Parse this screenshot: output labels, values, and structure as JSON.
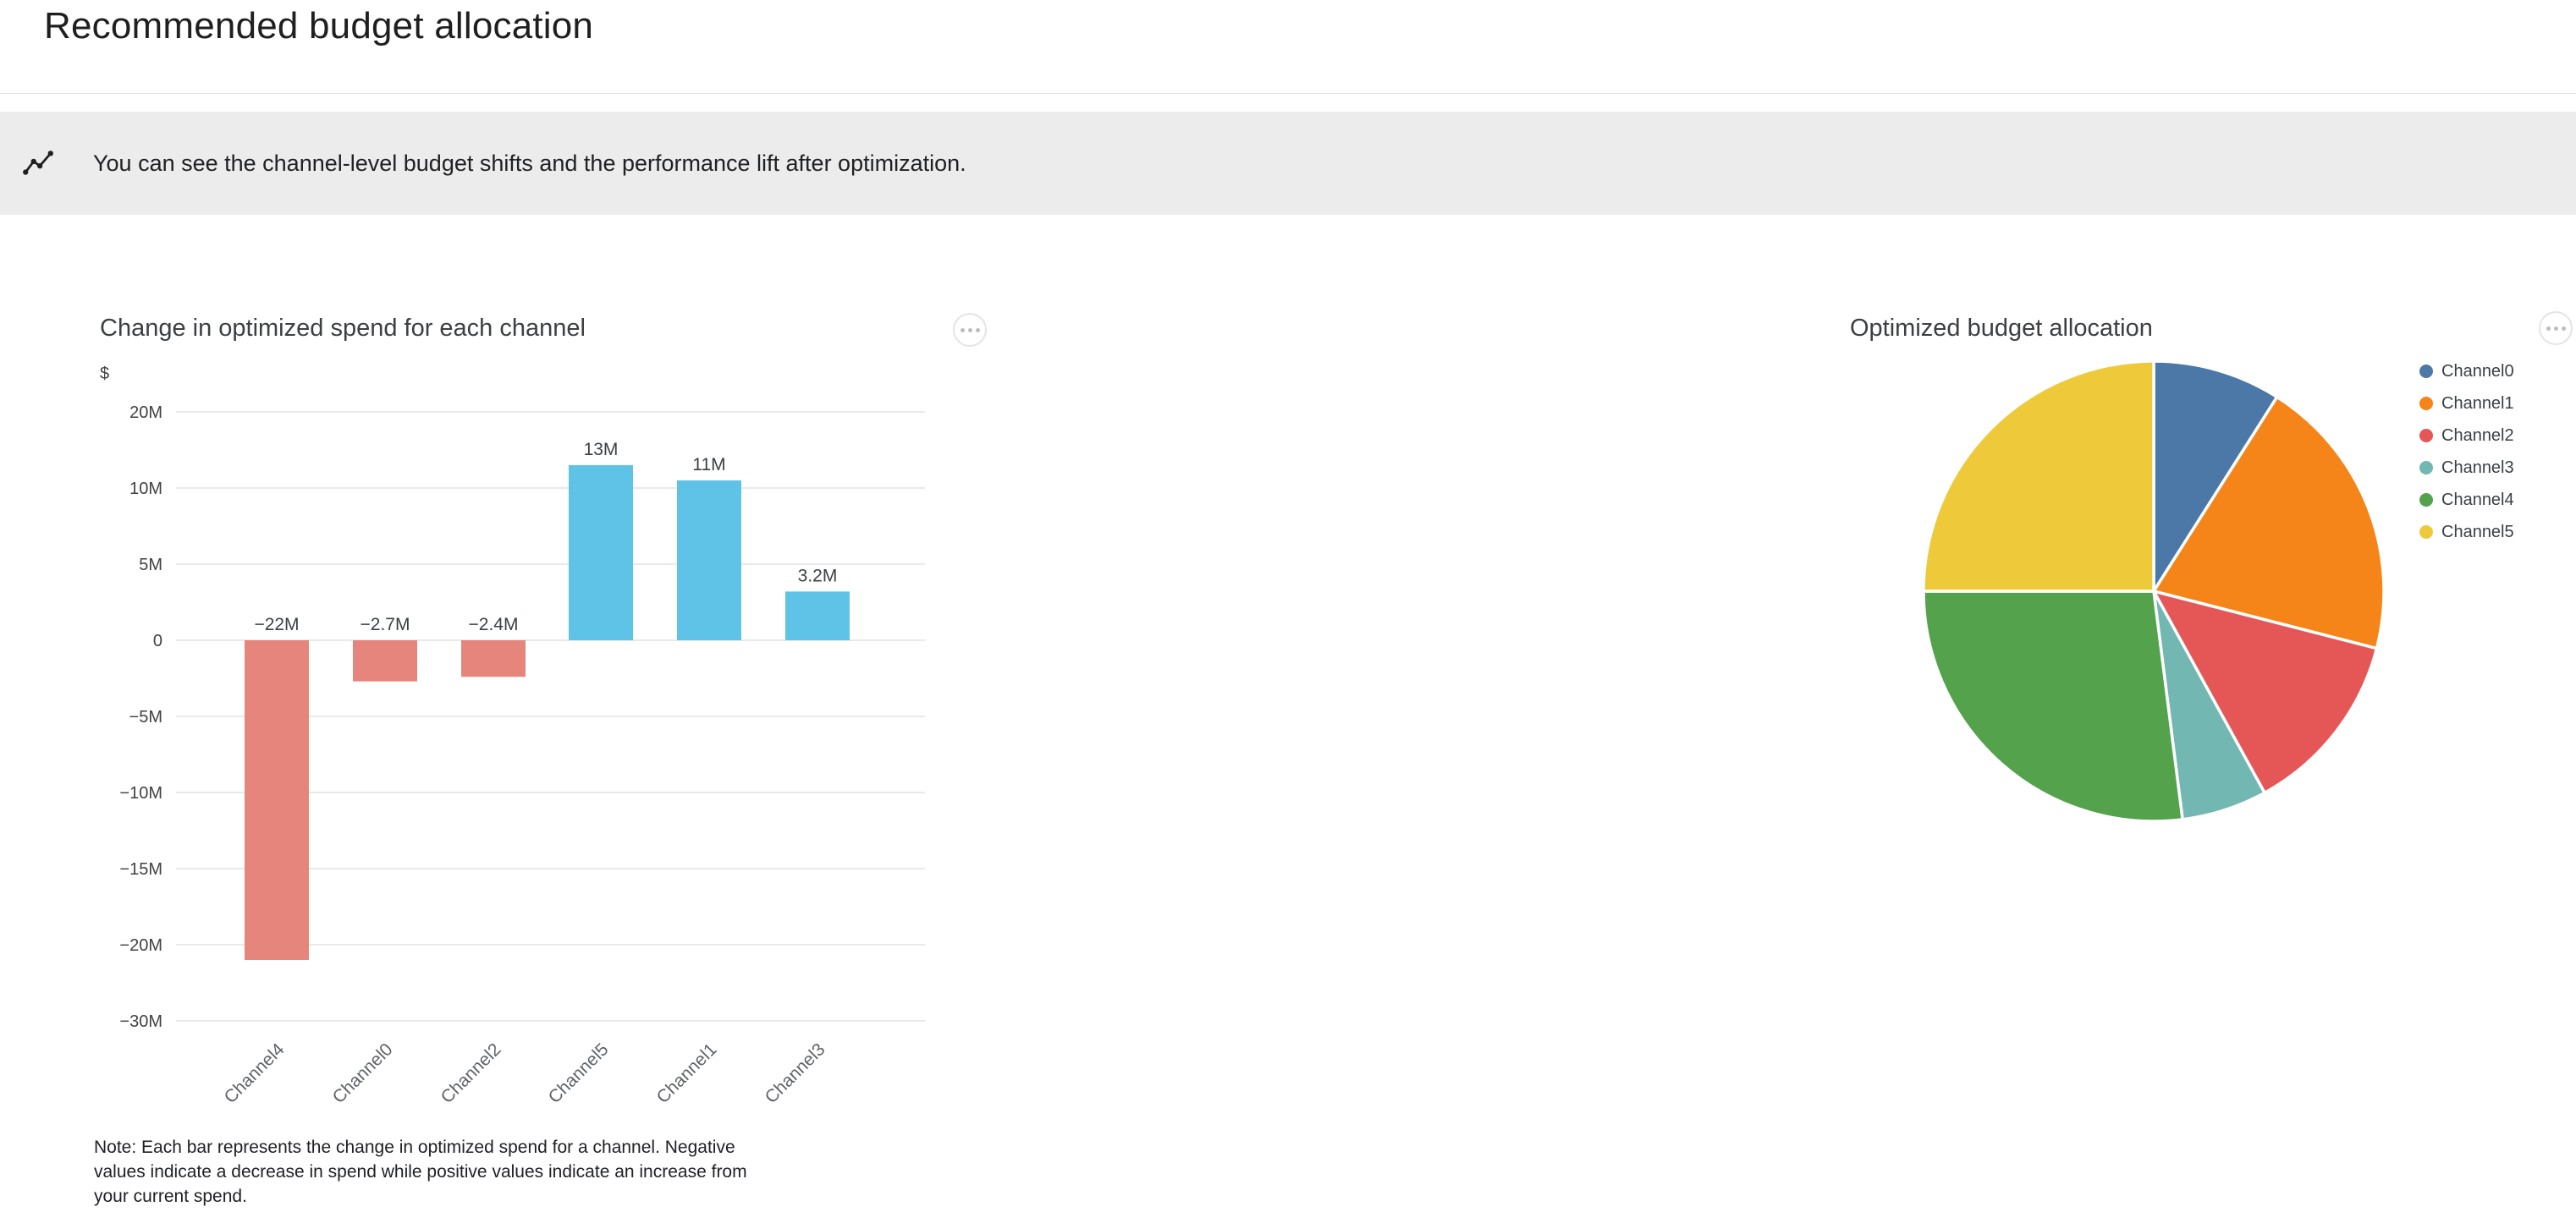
{
  "page": {
    "title": "Recommended budget allocation"
  },
  "banner": {
    "icon": "insights-icon",
    "background": "#ececec",
    "text": "You can see the channel-level budget shifts and the performance lift after optimization."
  },
  "bar_card": {
    "title": "Change in optimized spend for each channel",
    "note_lines": [
      "Note: Each bar represents the change in optimized spend for a channel. Negative",
      "values indicate a decrease in spend while positive values indicate an increase from",
      "your current spend."
    ]
  },
  "pie_card": {
    "title": "Optimized budget allocation"
  },
  "chart_data": [
    {
      "type": "bar",
      "title": "Change in optimized spend for each channel",
      "ylabel": "$",
      "categories": [
        "Channel4",
        "Channel0",
        "Channel2",
        "Channel5",
        "Channel1",
        "Channel3"
      ],
      "values_millions": [
        -22,
        -2.7,
        -2.4,
        13,
        11,
        3.2
      ],
      "value_labels": [
        "−22M",
        "−2.7M",
        "−2.4M",
        "13M",
        "11M",
        "3.2M"
      ],
      "y_tick_labels": [
        "20M",
        "10M",
        "5M",
        "0",
        "−5M",
        "−10M",
        "−15M",
        "−20M",
        "−30M"
      ],
      "y_tick_values": [
        20,
        10,
        5,
        0,
        -5,
        -10,
        -15,
        -20,
        -30
      ],
      "ylim": [
        20,
        -30
      ],
      "grid": true,
      "bar_colors": {
        "positive": "#5EC3E6",
        "negative": "#E6857B"
      },
      "grid_color": "#e2e2e2",
      "tick_color": "#424242",
      "category_color": "#5f6368",
      "value_label_color": "#3c4043"
    },
    {
      "type": "pie",
      "title": "Optimized budget allocation",
      "legend_position": "right",
      "slices": [
        {
          "label": "Channel0",
          "percent": 9,
          "color": "#4C78A8"
        },
        {
          "label": "Channel1",
          "percent": 20,
          "color": "#F58518"
        },
        {
          "label": "Channel2",
          "percent": 13,
          "color": "#E45756"
        },
        {
          "label": "Channel3",
          "percent": 6,
          "color": "#72B7B2"
        },
        {
          "label": "Channel4",
          "percent": 27,
          "color": "#54A24B"
        },
        {
          "label": "Channel5",
          "percent": 25,
          "color": "#EECA3B"
        }
      ]
    }
  ]
}
